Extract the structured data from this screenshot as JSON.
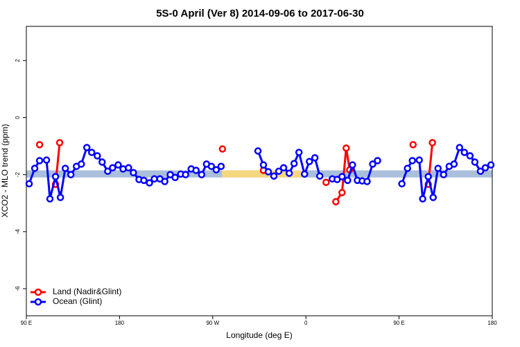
{
  "chart_data": {
    "type": "line",
    "title": "5S-0 April (Ver 8)   2014-09-06 to 2017-06-30",
    "x_label": "Longitude (deg E)",
    "y_label": "XCO2 - MLO trend (ppm)",
    "xlim": [
      90,
      540
    ],
    "ylim": [
      -6.95,
      3.2
    ],
    "xticks": [
      {
        "value": 90,
        "label": "90 E"
      },
      180,
      {
        "value": 270,
        "label": "90 W"
      },
      0,
      {
        "value": 450,
        "label": "90 E"
      },
      {
        "value": 540,
        "label": "180"
      }
    ],
    "yticks": [
      2,
      0,
      -2,
      -4,
      -6
    ],
    "band": {
      "range": [
        -1.85,
        -2.1
      ],
      "color": "#a9bfdc",
      "highlights": [
        [
          279,
          360
        ]
      ],
      "highlight_color": "#f5d77f"
    },
    "legend": "bottom-left",
    "series": [
      {
        "name": "Land (Nadir&Glint)",
        "color": "#ff0000",
        "x": [
          102.8,
          null,
          118.2,
          122.2,
          null,
          279.4,
          null,
          319.0,
          null,
          379.5,
          null,
          388.9,
          394.9,
          398.9,
          402.3,
          null,
          463.5,
          null,
          478.2,
          482.2
        ],
        "values": [
          -0.95,
          null,
          -2.34,
          -0.88,
          null,
          -1.1,
          null,
          -1.85,
          null,
          -2.27,
          null,
          -2.95,
          -2.63,
          -1.07,
          -1.83,
          null,
          -0.95,
          null,
          -2.34,
          -0.88
        ]
      },
      {
        "name": "Ocean (Glint)",
        "color": "#0000ff",
        "x": [
          92.7,
          98.1,
          102.8,
          109.5,
          112.8,
          118.2,
          122.9,
          127.6,
          133.0,
          138.4,
          143.1,
          148.4,
          153.1,
          158.5,
          163.2,
          168.6,
          173.3,
          178.7,
          183.4,
          188.7,
          193.4,
          198.8,
          203.5,
          208.9,
          213.6,
          219.0,
          223.7,
          229.0,
          233.7,
          239.1,
          243.8,
          249.2,
          253.9,
          259.3,
          264.0,
          268.7,
          273.4,
          278.1,
          null,
          313.7,
          319.0,
          323.7,
          329.1,
          333.8,
          338.5,
          343.9,
          348.6,
          353.3,
          358.7,
          363.4,
          368.7,
          373.4,
          null,
          385.5,
          390.2,
          394.9,
          400.3,
          405.0,
          409.7,
          414.4,
          419.1,
          424.5,
          429.2,
          null,
          452.7,
          458.1,
          462.8,
          469.5,
          472.8,
          478.2,
          482.9,
          487.6,
          493.0,
          498.4,
          503.1,
          508.4,
          513.1,
          518.5,
          523.2,
          528.6,
          533.3,
          538.7
        ],
        "values": [
          -2.32,
          -1.78,
          -1.51,
          -1.49,
          -2.85,
          -2.07,
          -2.8,
          -1.78,
          -2.0,
          -1.71,
          -1.63,
          -1.05,
          -1.22,
          -1.34,
          -1.56,
          -1.88,
          -1.76,
          -1.66,
          -1.8,
          -1.76,
          -1.93,
          -2.17,
          -2.2,
          -2.29,
          -2.15,
          -2.15,
          -2.24,
          -2.0,
          -2.1,
          -1.98,
          -2.0,
          -1.8,
          -1.85,
          -2.0,
          -1.63,
          -1.71,
          -1.83,
          -1.71,
          null,
          -1.17,
          -1.66,
          -1.9,
          -2.05,
          -1.88,
          -1.76,
          -1.95,
          -1.61,
          -1.22,
          -1.98,
          -1.54,
          -1.41,
          -2.05,
          null,
          -2.15,
          -2.17,
          -2.07,
          -2.2,
          -1.66,
          -2.2,
          -2.22,
          -2.24,
          -1.63,
          -1.51,
          null,
          -2.32,
          -1.78,
          -1.51,
          -1.49,
          -2.85,
          -2.07,
          -2.8,
          -1.78,
          -2.0,
          -1.71,
          -1.63,
          -1.05,
          -1.22,
          -1.34,
          -1.56,
          -1.88,
          -1.76,
          -1.66
        ]
      }
    ]
  }
}
